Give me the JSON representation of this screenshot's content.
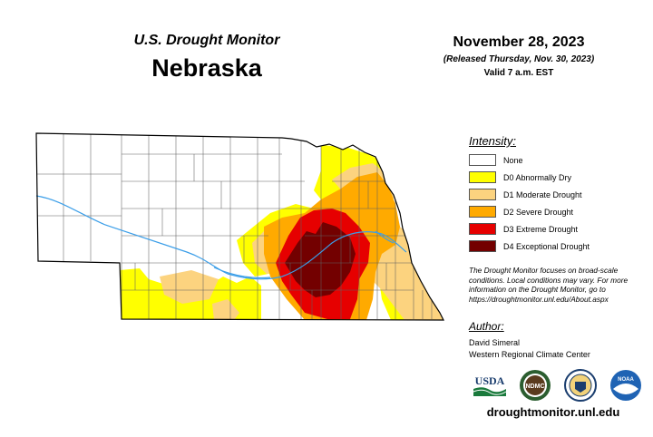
{
  "header": {
    "program": "U.S. Drought Monitor",
    "state": "Nebraska",
    "date": "November 28, 2023",
    "released": "(Released Thursday, Nov. 30, 2023)",
    "valid": "Valid 7 a.m. EST"
  },
  "legend": {
    "title": "Intensity:",
    "items": [
      {
        "label": "None",
        "color": "#ffffff"
      },
      {
        "label": "D0 Abnormally Dry",
        "color": "#ffff00"
      },
      {
        "label": "D1 Moderate Drought",
        "color": "#fcd37f"
      },
      {
        "label": "D2 Severe Drought",
        "color": "#ffaa00"
      },
      {
        "label": "D3 Extreme Drought",
        "color": "#e60000"
      },
      {
        "label": "D4 Exceptional Drought",
        "color": "#730000"
      }
    ]
  },
  "note": "The Drought Monitor focuses on broad-scale conditions. Local conditions may vary. For more information on the Drought Monitor, go to https://droughtmonitor.unl.edu/About.aspx",
  "author": {
    "title": "Author:",
    "name": "David Simeral",
    "org": "Western Regional Climate Center"
  },
  "logos": {
    "usda": "USDA",
    "ndmc": "NDMC",
    "noaa": "NOAA"
  },
  "url": "droughtmonitor.unl.edu"
}
